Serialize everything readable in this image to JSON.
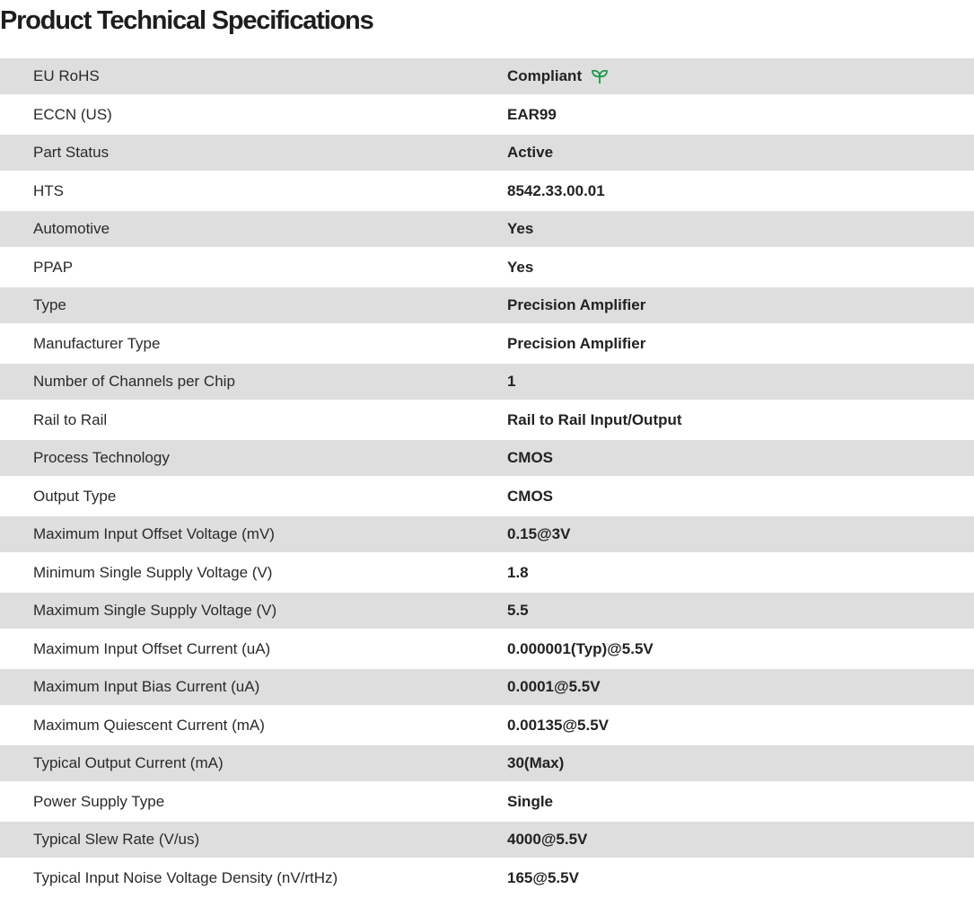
{
  "title": "Product Technical Specifications",
  "accent_color": "#1a9a4a",
  "rows": [
    {
      "label": "EU RoHS",
      "value": "Compliant",
      "icon": "leaf-icon"
    },
    {
      "label": "ECCN (US)",
      "value": "EAR99"
    },
    {
      "label": "Part Status",
      "value": "Active"
    },
    {
      "label": "HTS",
      "value": "8542.33.00.01"
    },
    {
      "label": "Automotive",
      "value": "Yes"
    },
    {
      "label": "PPAP",
      "value": "Yes"
    },
    {
      "label": "Type",
      "value": "Precision Amplifier"
    },
    {
      "label": "Manufacturer Type",
      "value": "Precision Amplifier"
    },
    {
      "label": "Number of Channels per Chip",
      "value": "1"
    },
    {
      "label": "Rail to Rail",
      "value": "Rail to Rail Input/Output"
    },
    {
      "label": "Process Technology",
      "value": "CMOS"
    },
    {
      "label": "Output Type",
      "value": "CMOS"
    },
    {
      "label": "Maximum Input Offset Voltage (mV)",
      "value": "0.15@3V"
    },
    {
      "label": "Minimum Single Supply Voltage (V)",
      "value": "1.8"
    },
    {
      "label": "Maximum Single Supply Voltage (V)",
      "value": "5.5"
    },
    {
      "label": "Maximum Input Offset Current (uA)",
      "value": "0.000001(Typ)@5.5V"
    },
    {
      "label": "Maximum Input Bias Current (uA)",
      "value": "0.0001@5.5V"
    },
    {
      "label": "Maximum Quiescent Current (mA)",
      "value": "0.00135@5.5V"
    },
    {
      "label": "Typical Output Current (mA)",
      "value": "30(Max)"
    },
    {
      "label": "Power Supply Type",
      "value": "Single"
    },
    {
      "label": "Typical Slew Rate (V/us)",
      "value": "4000@5.5V"
    },
    {
      "label": "Typical Input Noise Voltage Density (nV/rtHz)",
      "value": "165@5.5V"
    }
  ]
}
